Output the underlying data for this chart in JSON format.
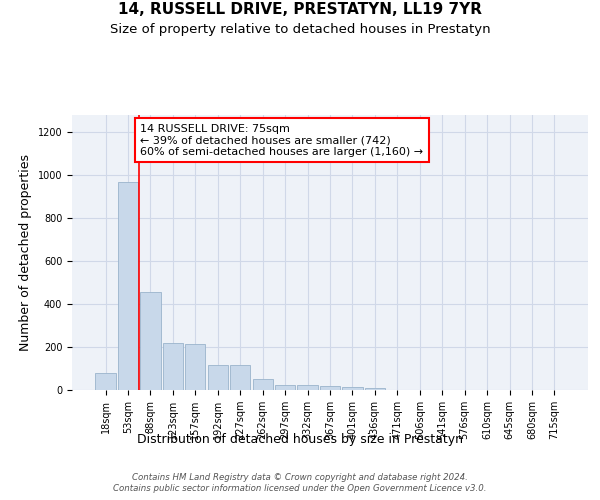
{
  "title": "14, RUSSELL DRIVE, PRESTATYN, LL19 7YR",
  "subtitle": "Size of property relative to detached houses in Prestatyn",
  "xlabel": "Distribution of detached houses by size in Prestatyn",
  "ylabel": "Number of detached properties",
  "bar_labels": [
    "18sqm",
    "53sqm",
    "88sqm",
    "123sqm",
    "157sqm",
    "192sqm",
    "227sqm",
    "262sqm",
    "297sqm",
    "332sqm",
    "367sqm",
    "401sqm",
    "436sqm",
    "471sqm",
    "506sqm",
    "541sqm",
    "576sqm",
    "610sqm",
    "645sqm",
    "680sqm",
    "715sqm"
  ],
  "bar_values": [
    80,
    970,
    455,
    218,
    215,
    118,
    115,
    50,
    25,
    23,
    20,
    14,
    10,
    0,
    0,
    0,
    0,
    0,
    0,
    0,
    0
  ],
  "bar_color": "#c8d8ea",
  "bar_edge_color": "#9ab4cc",
  "grid_color": "#d0d8e8",
  "background_color": "#eef2f8",
  "red_line_x": 1.5,
  "annotation_text": "14 RUSSELL DRIVE: 75sqm\n← 39% of detached houses are smaller (742)\n60% of semi-detached houses are larger (1,160) →",
  "annotation_box_color": "white",
  "annotation_box_edge": "red",
  "ylim": [
    0,
    1280
  ],
  "yticks": [
    0,
    200,
    400,
    600,
    800,
    1000,
    1200
  ],
  "footer_line1": "Contains HM Land Registry data © Crown copyright and database right 2024.",
  "footer_line2": "Contains public sector information licensed under the Open Government Licence v3.0.",
  "title_fontsize": 11,
  "subtitle_fontsize": 9.5,
  "xlabel_fontsize": 9,
  "ylabel_fontsize": 9,
  "annot_fontsize": 8,
  "tick_fontsize": 7
}
